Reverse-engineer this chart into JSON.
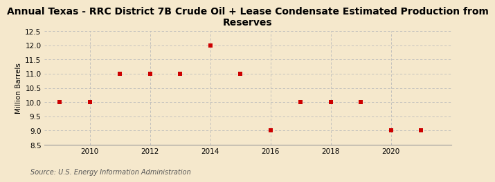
{
  "title": "Annual Texas - RRC District 7B Crude Oil + Lease Condensate Estimated Production from\nReserves",
  "ylabel": "Million Barrels",
  "source": "Source: U.S. Energy Information Administration",
  "background_color": "#f5e8cc",
  "years": [
    2009,
    2010,
    2011,
    2012,
    2013,
    2014,
    2015,
    2016,
    2017,
    2018,
    2019,
    2020,
    2021
  ],
  "values": [
    10.0,
    10.0,
    11.0,
    11.0,
    11.0,
    12.0,
    11.0,
    9.0,
    10.0,
    10.0,
    10.0,
    9.0,
    9.0
  ],
  "ylim": [
    8.5,
    12.5
  ],
  "yticks": [
    8.5,
    9.0,
    9.5,
    10.0,
    10.5,
    11.0,
    11.5,
    12.0,
    12.5
  ],
  "xticks": [
    2010,
    2012,
    2014,
    2016,
    2018,
    2020
  ],
  "xlim": [
    2008.5,
    2022.0
  ],
  "marker_color": "#cc0000",
  "marker_size": 4,
  "grid_color": "#bbbbbb",
  "title_fontsize": 10,
  "label_fontsize": 7.5,
  "tick_fontsize": 7.5,
  "source_fontsize": 7
}
